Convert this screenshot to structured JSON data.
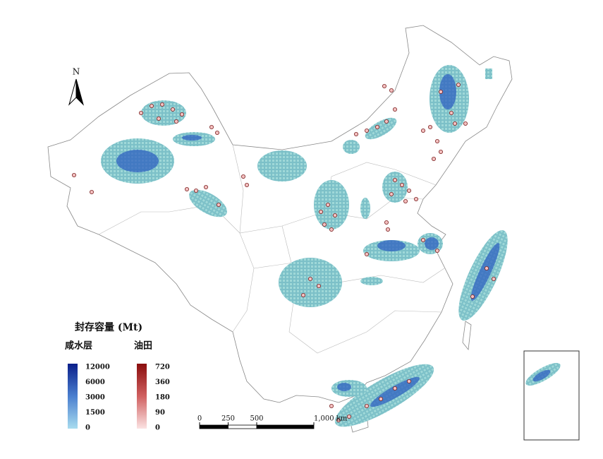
{
  "map": {
    "north": "N",
    "legend": {
      "title": "封存容量 (Mt)",
      "saline": {
        "name": "咸水层",
        "ticks": [
          12000,
          6000,
          3000,
          1500,
          0
        ]
      },
      "oil": {
        "name": "油田",
        "ticks": [
          720,
          360,
          180,
          90,
          0
        ]
      }
    },
    "scale_bar": {
      "ticks": [
        0,
        250,
        500,
        {
          "value": 1000,
          "label": "1,000 km"
        }
      ]
    }
  }
}
